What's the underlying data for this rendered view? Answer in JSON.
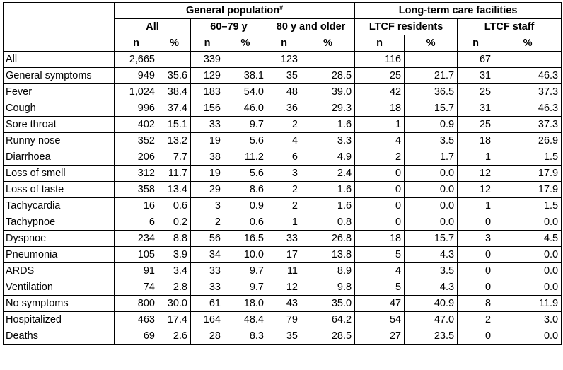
{
  "header": {
    "group_general": "General population",
    "group_general_mark": "#",
    "group_ltcf": "Long-term care facilities",
    "sub_all": "All",
    "sub_60_79": "60–79 y",
    "sub_80": "80 y and older",
    "sub_ltcf_res": "LTCF residents",
    "sub_ltcf_staff": "LTCF staff",
    "n": "n",
    "pct": "%"
  },
  "rows": [
    {
      "label": "All",
      "v": [
        "2,665",
        "",
        "339",
        "",
        "123",
        "",
        "116",
        "",
        "67",
        ""
      ]
    },
    {
      "label": "General symptoms",
      "v": [
        "949",
        "35.6",
        "129",
        "38.1",
        "35",
        "28.5",
        "25",
        "21.7",
        "31",
        "46.3"
      ]
    },
    {
      "label": "Fever",
      "v": [
        "1,024",
        "38.4",
        "183",
        "54.0",
        "48",
        "39.0",
        "42",
        "36.5",
        "25",
        "37.3"
      ]
    },
    {
      "label": "Cough",
      "v": [
        "996",
        "37.4",
        "156",
        "46.0",
        "36",
        "29.3",
        "18",
        "15.7",
        "31",
        "46.3"
      ]
    },
    {
      "label": "Sore throat",
      "v": [
        "402",
        "15.1",
        "33",
        "9.7",
        "2",
        "1.6",
        "1",
        "0.9",
        "25",
        "37.3"
      ]
    },
    {
      "label": "Runny nose",
      "v": [
        "352",
        "13.2",
        "19",
        "5.6",
        "4",
        "3.3",
        "4",
        "3.5",
        "18",
        "26.9"
      ]
    },
    {
      "label": "Diarrhoea",
      "v": [
        "206",
        "7.7",
        "38",
        "11.2",
        "6",
        "4.9",
        "2",
        "1.7",
        "1",
        "1.5"
      ]
    },
    {
      "label": "Loss of smell",
      "v": [
        "312",
        "11.7",
        "19",
        "5.6",
        "3",
        "2.4",
        "0",
        "0.0",
        "12",
        "17.9"
      ]
    },
    {
      "label": "Loss of taste",
      "v": [
        "358",
        "13.4",
        "29",
        "8.6",
        "2",
        "1.6",
        "0",
        "0.0",
        "12",
        "17.9"
      ]
    },
    {
      "label": "Tachycardia",
      "v": [
        "16",
        "0.6",
        "3",
        "0.9",
        "2",
        "1.6",
        "0",
        "0.0",
        "1",
        "1.5"
      ]
    },
    {
      "label": "Tachypnoe",
      "v": [
        "6",
        "0.2",
        "2",
        "0.6",
        "1",
        "0.8",
        "0",
        "0.0",
        "0",
        "0.0"
      ]
    },
    {
      "label": "Dyspnoe",
      "v": [
        "234",
        "8.8",
        "56",
        "16.5",
        "33",
        "26.8",
        "18",
        "15.7",
        "3",
        "4.5"
      ]
    },
    {
      "label": "Pneumonia",
      "v": [
        "105",
        "3.9",
        "34",
        "10.0",
        "17",
        "13.8",
        "5",
        "4.3",
        "0",
        "0.0"
      ]
    },
    {
      "label": "ARDS",
      "v": [
        "91",
        "3.4",
        "33",
        "9.7",
        "11",
        "8.9",
        "4",
        "3.5",
        "0",
        "0.0"
      ]
    },
    {
      "label": "Ventilation",
      "v": [
        "74",
        "2.8",
        "33",
        "9.7",
        "12",
        "9.8",
        "5",
        "4.3",
        "0",
        "0.0"
      ]
    },
    {
      "label": "No symptoms",
      "v": [
        "800",
        "30.0",
        "61",
        "18.0",
        "43",
        "35.0",
        "47",
        "40.9",
        "8",
        "11.9"
      ]
    },
    {
      "label": "Hospitalized",
      "v": [
        "463",
        "17.4",
        "164",
        "48.4",
        "79",
        "64.2",
        "54",
        "47.0",
        "2",
        "3.0"
      ]
    },
    {
      "label": "Deaths",
      "v": [
        "69",
        "2.6",
        "28",
        "8.3",
        "35",
        "28.5",
        "27",
        "23.5",
        "0",
        "0.0"
      ]
    }
  ]
}
